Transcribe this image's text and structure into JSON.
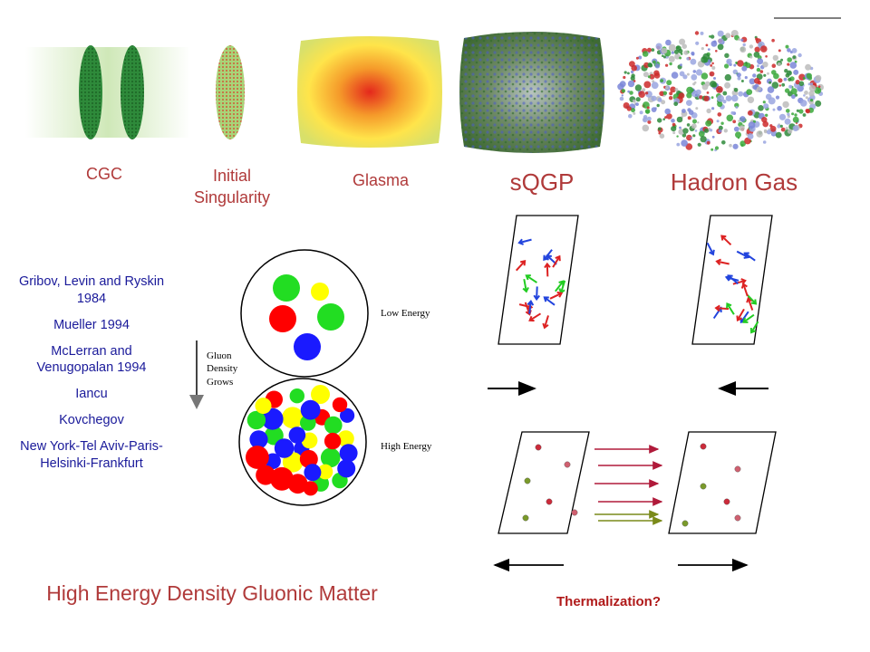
{
  "stages": [
    {
      "name": "CGC"
    },
    {
      "name": "Initial Singularity"
    },
    {
      "name": "Glasma"
    },
    {
      "name": "sQGP"
    },
    {
      "name": "Hadron Gas"
    }
  ],
  "references": [
    "Gribov, Levin and Ryskin 1984",
    "Mueller 1994",
    "McLerran and Venugopalan 1994",
    "Iancu",
    "Kovchegov",
    "New York-Tel Aviv-Paris-Helsinki-Frankfurt"
  ],
  "gluon_diagram": {
    "axis_label": "Gluon Density Grows",
    "low_label": "Low Energy",
    "high_label": "High Energy"
  },
  "main_title": "High Energy Density Gluonic Matter",
  "thermalization_label": "Thermalization?",
  "colors": {
    "label_red": "#b03a3a",
    "ref_blue": "#1a1a9a",
    "gluon_red": "#ff0000",
    "gluon_green": "#22dd22",
    "gluon_blue": "#1a1aff",
    "gluon_yellow": "#ffff00"
  }
}
